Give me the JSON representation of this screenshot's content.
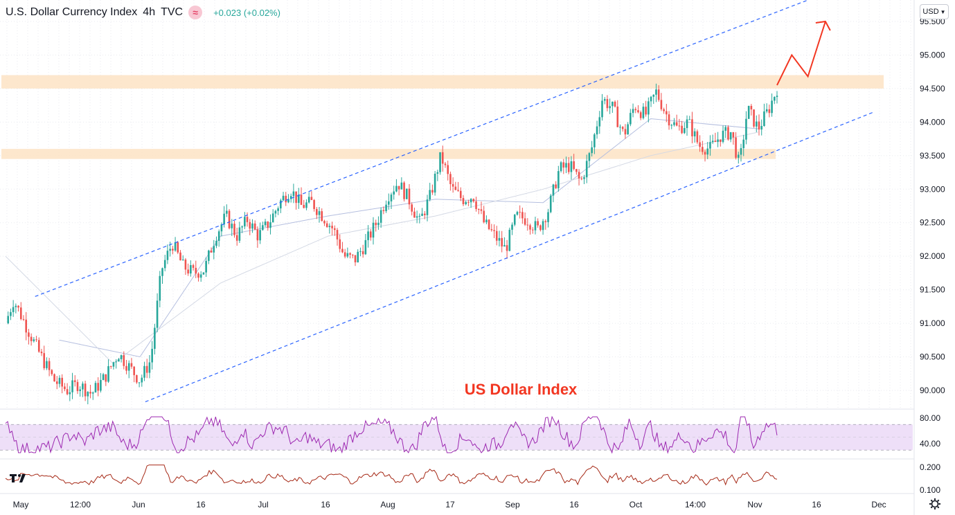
{
  "header": {
    "symbol": "U.S. Dollar Currency Index",
    "interval": "4h",
    "source": "TVC",
    "change": "+0.023 (+0.02%)"
  },
  "currency_button": "USD",
  "colors": {
    "up": "#26a69a",
    "down": "#ef5350",
    "zone": "#fde3c4",
    "channel": "#2962ff",
    "rsi": "#9c27b0",
    "rsi_band": "#ead7f6",
    "lower": "#a52714",
    "arrow": "#f23621",
    "ma": "#b4bedf",
    "ma_long": "#d3d8e4"
  },
  "chart_data": [
    {
      "type": "candlestick",
      "annotation": "US Dollar Index",
      "y_ticks": [
        "95.500",
        "95.000",
        "94.500",
        "94.000",
        "93.500",
        "93.000",
        "92.500",
        "92.000",
        "91.500",
        "91.000",
        "90.500",
        "90.000"
      ],
      "ylim": [
        89.85,
        95.55
      ],
      "x_ticks": [
        "May",
        "12:00",
        "Jun",
        "16",
        "Jul",
        "16",
        "Aug",
        "17",
        "Sep",
        "16",
        "Oct",
        "14:00",
        "Nov",
        "16",
        "Dec"
      ],
      "close_path": [
        [
          0,
          91.0
        ],
        [
          0.3,
          91.35
        ],
        [
          0.6,
          91.1
        ],
        [
          1.2,
          90.6
        ],
        [
          1.8,
          90.15
        ],
        [
          2.3,
          90.0
        ],
        [
          2.7,
          90.1
        ],
        [
          3.2,
          89.95
        ],
        [
          3.7,
          90.2
        ],
        [
          4.2,
          90.55
        ],
        [
          4.6,
          90.35
        ],
        [
          5.0,
          90.15
        ],
        [
          5.4,
          90.45
        ],
        [
          5.8,
          91.8
        ],
        [
          6.2,
          92.2
        ],
        [
          6.6,
          91.85
        ],
        [
          7.0,
          91.75
        ],
        [
          7.4,
          91.8
        ],
        [
          7.8,
          92.3
        ],
        [
          8.2,
          92.6
        ],
        [
          8.6,
          92.3
        ],
        [
          9.0,
          92.55
        ],
        [
          9.4,
          92.3
        ],
        [
          9.8,
          92.5
        ],
        [
          10.2,
          92.8
        ],
        [
          10.6,
          93.0
        ],
        [
          11.0,
          92.75
        ],
        [
          11.4,
          92.8
        ],
        [
          11.8,
          92.6
        ],
        [
          12.2,
          92.4
        ],
        [
          12.6,
          92.0
        ],
        [
          13.0,
          91.95
        ],
        [
          13.4,
          92.2
        ],
        [
          13.8,
          92.5
        ],
        [
          14.2,
          92.9
        ],
        [
          14.6,
          93.1
        ],
        [
          15.0,
          92.85
        ],
        [
          15.4,
          92.5
        ],
        [
          15.8,
          92.9
        ],
        [
          16.2,
          93.5
        ],
        [
          16.6,
          93.0
        ],
        [
          17.0,
          92.85
        ],
        [
          17.4,
          92.9
        ],
        [
          17.8,
          92.5
        ],
        [
          18.2,
          92.3
        ],
        [
          18.6,
          92.1
        ],
        [
          19.0,
          92.6
        ],
        [
          19.4,
          92.55
        ],
        [
          19.8,
          92.4
        ],
        [
          20.2,
          92.7
        ],
        [
          20.6,
          93.3
        ],
        [
          21.0,
          93.35
        ],
        [
          21.4,
          93.1
        ],
        [
          21.8,
          93.6
        ],
        [
          22.2,
          94.35
        ],
        [
          22.6,
          94.2
        ],
        [
          23.0,
          93.8
        ],
        [
          23.4,
          94.25
        ],
        [
          23.8,
          94.1
        ],
        [
          24.2,
          94.45
        ],
        [
          24.6,
          94.1
        ],
        [
          25.0,
          93.9
        ],
        [
          25.4,
          94.0
        ],
        [
          25.8,
          93.65
        ],
        [
          26.2,
          93.6
        ],
        [
          26.6,
          93.8
        ],
        [
          27.0,
          93.85
        ],
        [
          27.3,
          93.35
        ],
        [
          27.6,
          94.2
        ],
        [
          28.0,
          93.9
        ],
        [
          28.4,
          94.2
        ],
        [
          28.7,
          94.5
        ]
      ],
      "projection": [
        [
          28.7,
          94.55
        ],
        [
          29.25,
          95.0
        ],
        [
          29.85,
          94.68
        ],
        [
          30.5,
          95.5
        ]
      ],
      "resistance_zones": [
        [
          94.5,
          94.7
        ],
        [
          93.45,
          93.6
        ]
      ],
      "channel_upper": [
        [
          1.1,
          91.4
        ],
        [
          30.05,
          95.85
        ]
      ],
      "channel_lower": [
        [
          5.2,
          89.83
        ],
        [
          32.3,
          94.15
        ]
      ],
      "ma_fast": [
        [
          2,
          90.75
        ],
        [
          5,
          90.5
        ],
        [
          8,
          92.3
        ],
        [
          12,
          92.6
        ],
        [
          16,
          92.85
        ],
        [
          20,
          92.8
        ],
        [
          24,
          94.05
        ],
        [
          28,
          93.9
        ]
      ],
      "ma_slow": [
        [
          0,
          92.0
        ],
        [
          4,
          90.4
        ],
        [
          8,
          91.6
        ],
        [
          12,
          92.3
        ],
        [
          16,
          92.6
        ],
        [
          20,
          93.0
        ],
        [
          24,
          93.5
        ],
        [
          28,
          93.85
        ]
      ]
    },
    {
      "type": "line",
      "name": "rsi",
      "y_ticks": [
        "80.00",
        "40.00"
      ],
      "ylim": [
        20,
        86
      ],
      "band": [
        30,
        70
      ]
    },
    {
      "type": "line",
      "name": "lower",
      "y_ticks": [
        "0.200",
        "0.100"
      ],
      "ylim": [
        0.08,
        0.24
      ]
    }
  ]
}
